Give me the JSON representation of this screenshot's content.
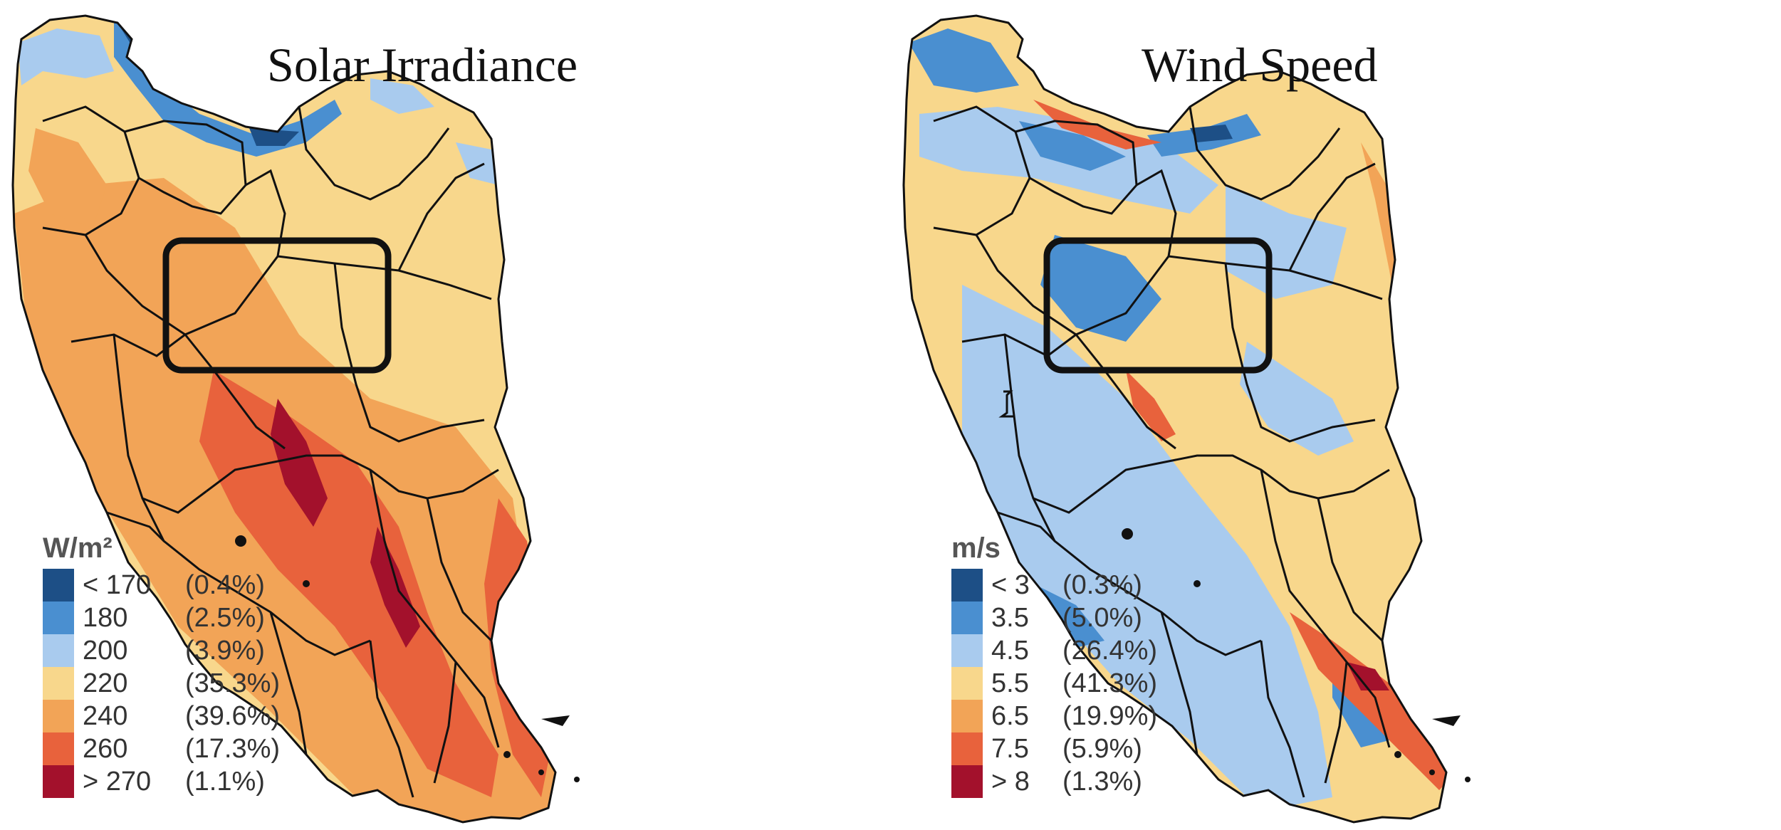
{
  "panels": [
    {
      "title": "Solar Irradiance",
      "legend": {
        "unit": "W/m²",
        "classes": [
          {
            "label": "< 170",
            "pct": "(0.4%)",
            "color": "#1d4f86"
          },
          {
            "label": "180",
            "pct": "(2.5%)",
            "color": "#4a8fd0"
          },
          {
            "label": "200",
            "pct": "(3.9%)",
            "color": "#a9cbee"
          },
          {
            "label": "220",
            "pct": "(35.3%)",
            "color": "#f8d78c"
          },
          {
            "label": "240",
            "pct": "(39.6%)",
            "color": "#f2a457"
          },
          {
            "label": "260",
            "pct": "(17.3%)",
            "color": "#e8623c"
          },
          {
            "label": "> 270",
            "pct": "(1.1%)",
            "color": "#a3112c"
          }
        ]
      }
    },
    {
      "title": "Wind Speed",
      "legend": {
        "unit": "m/s",
        "classes": [
          {
            "label": "< 3",
            "pct": "(0.3%)",
            "color": "#1d4f86"
          },
          {
            "label": "3.5",
            "pct": "(5.0%)",
            "color": "#4a8fd0"
          },
          {
            "label": "4.5",
            "pct": "(26.4%)",
            "color": "#a9cbee"
          },
          {
            "label": "5.5",
            "pct": "(41.3%)",
            "color": "#f8d78c"
          },
          {
            "label": "6.5",
            "pct": "(19.9%)",
            "color": "#f2a457"
          },
          {
            "label": "7.5",
            "pct": "(5.9%)",
            "color": "#e8623c"
          },
          {
            "label": "> 8",
            "pct": "(1.3%)",
            "color": "#a3112c"
          }
        ]
      }
    }
  ]
}
